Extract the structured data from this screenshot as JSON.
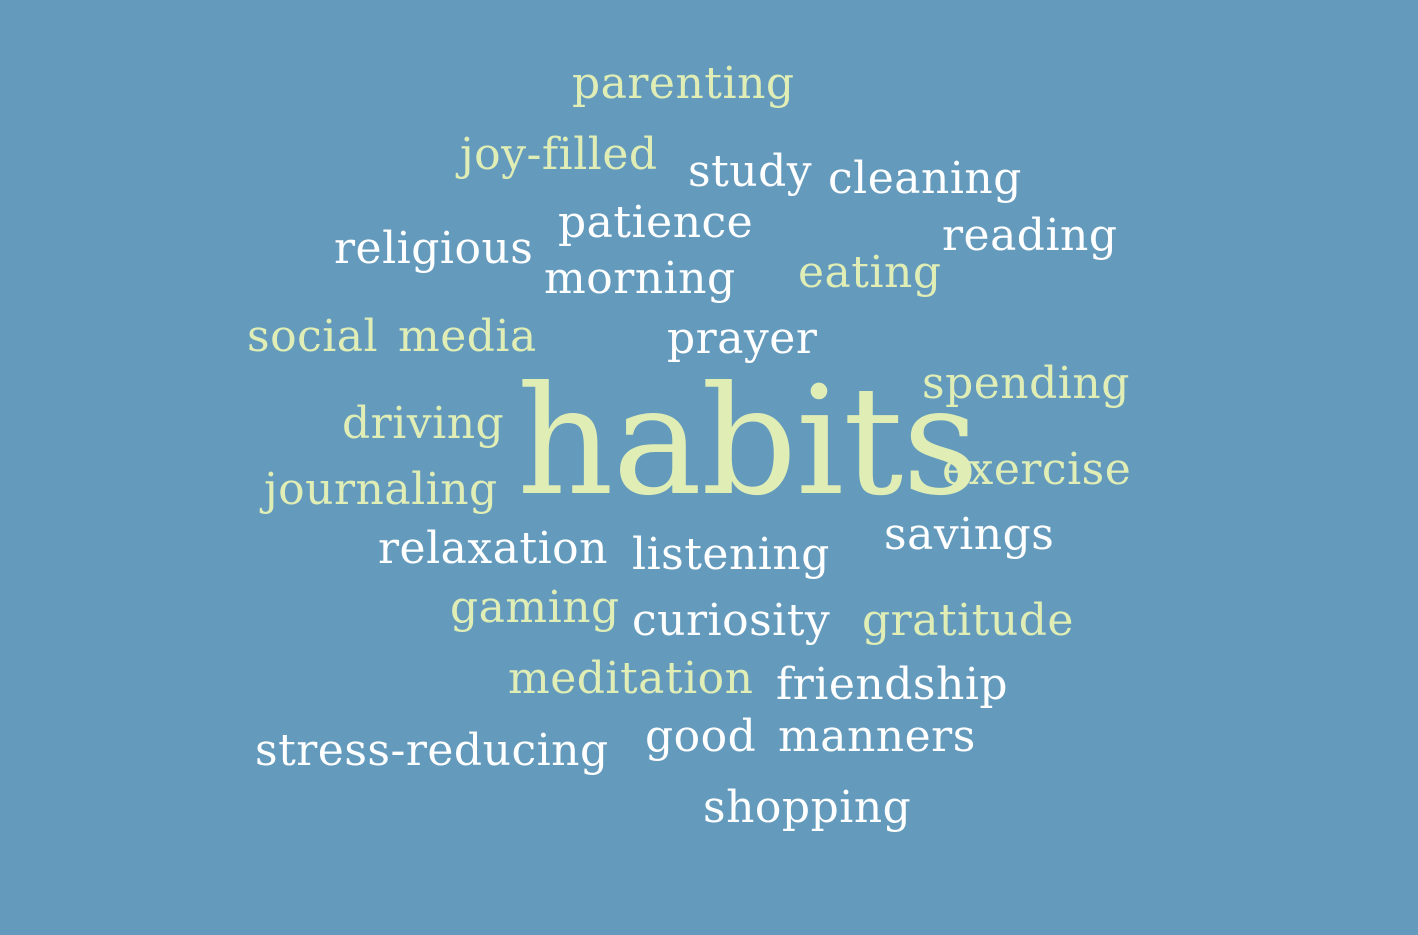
{
  "background_color": "#649bbd",
  "colors": {
    "light_green": "#e0eeb6",
    "white": "#ffffff"
  },
  "words": {
    "parenting": "parenting",
    "joy_filled": "joy-filled",
    "study": "study",
    "cleaning": "cleaning",
    "patience": "patience",
    "reading": "reading",
    "religious": "religious",
    "morning": "morning",
    "eating": "eating",
    "social": "social",
    "media": "media",
    "prayer": "prayer",
    "spending": "spending",
    "driving": "driving",
    "habits": "habits",
    "exercise": "exercise",
    "journaling": "journaling",
    "relaxation": "relaxation",
    "listening": "listening",
    "savings": "savings",
    "gaming": "gaming",
    "curiosity": "curiosity",
    "gratitude": "gratitude",
    "meditation": "meditation",
    "friendship": "friendship",
    "stress_reducing": "stress-reducing",
    "good": "good",
    "manners": "manners",
    "shopping": "shopping"
  }
}
